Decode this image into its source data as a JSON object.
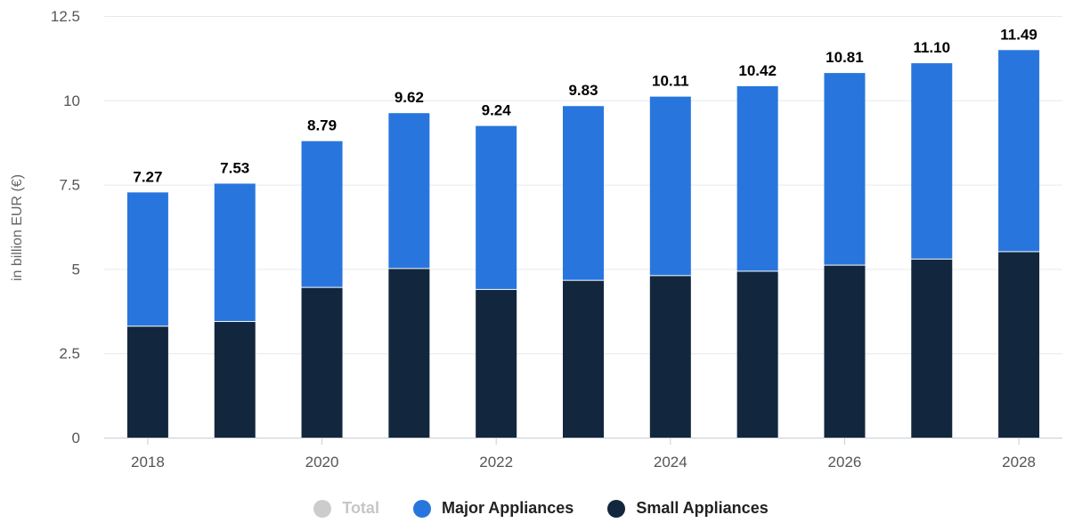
{
  "chart_data": {
    "type": "bar",
    "stacked": true,
    "categories": [
      "2018",
      "2019",
      "2020",
      "2021",
      "2022",
      "2023",
      "2024",
      "2025",
      "2026",
      "2027",
      "2028"
    ],
    "x_tick_labels": [
      "2018",
      "2020",
      "2022",
      "2024",
      "2026",
      "2028"
    ],
    "series": [
      {
        "name": "Small Appliances",
        "color": "#12273d",
        "values": [
          3.29,
          3.43,
          4.44,
          5.0,
          4.38,
          4.65,
          4.79,
          4.92,
          5.1,
          5.28,
          5.5
        ]
      },
      {
        "name": "Major Appliances",
        "color": "#2876dd",
        "values": [
          3.98,
          4.1,
          4.35,
          4.62,
          4.86,
          5.18,
          5.32,
          5.5,
          5.71,
          5.82,
          5.99
        ]
      }
    ],
    "totals": [
      "7.27",
      "7.53",
      "8.79",
      "9.62",
      "9.24",
      "9.83",
      "10.11",
      "10.42",
      "10.81",
      "11.10",
      "11.49"
    ],
    "ylabel": "in billion EUR (€)",
    "ylim": [
      0,
      12.5
    ],
    "y_ticks": [
      0,
      2.5,
      5,
      7.5,
      10,
      12.5
    ],
    "y_tick_labels": [
      "0",
      "2.5",
      "5",
      "7.5",
      "10",
      "12.5"
    ],
    "grid": true,
    "legend_position": "bottom"
  },
  "legend": [
    {
      "label": "Total",
      "color": "#cccccc",
      "active": false
    },
    {
      "label": "Major Appliances",
      "color": "#2876dd",
      "active": true
    },
    {
      "label": "Small Appliances",
      "color": "#12273d",
      "active": true
    }
  ]
}
